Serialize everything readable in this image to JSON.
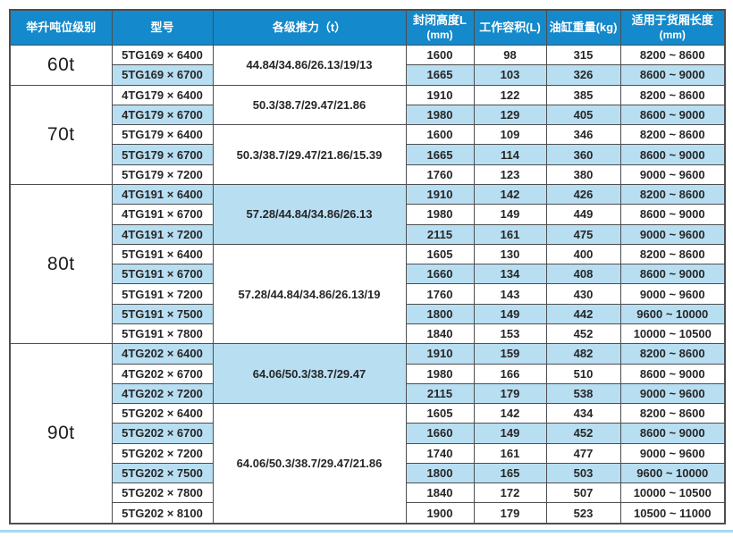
{
  "colors": {
    "header-bg": "#1489cb",
    "row-shade": "#b8def2",
    "border": "#4d4e50",
    "text": "#262626",
    "bottom-line": "#a6d9f3"
  },
  "table": {
    "headers": [
      {
        "label": "举升吨位级别",
        "sub": ""
      },
      {
        "label": "型号",
        "sub": ""
      },
      {
        "label": "各级推力（t）",
        "sub": ""
      },
      {
        "label": "封闭高度L",
        "sub": "(mm)"
      },
      {
        "label": "工作容积(L)",
        "sub": ""
      },
      {
        "label": "油缸重量(kg)",
        "sub": ""
      },
      {
        "label": "适用于货厢长度",
        "sub": "(mm)"
      }
    ],
    "groups": [
      {
        "tonnage": "60t",
        "subgroups": [
          {
            "thrust": "44.84/34.86/26.13/19/13",
            "thrust_shaded": false,
            "rows": [
              {
                "model": "5TG169 × 6400",
                "closed_height": "1600",
                "volume": "98",
                "weight": "315",
                "cargo_length": "8200 ~ 8600",
                "shaded": false
              },
              {
                "model": "5TG169 × 6700",
                "closed_height": "1665",
                "volume": "103",
                "weight": "326",
                "cargo_length": "8600 ~ 9000",
                "shaded": true
              }
            ]
          }
        ]
      },
      {
        "tonnage": "70t",
        "subgroups": [
          {
            "thrust": "50.3/38.7/29.47/21.86",
            "thrust_shaded": false,
            "rows": [
              {
                "model": "4TG179 × 6400",
                "closed_height": "1910",
                "volume": "122",
                "weight": "385",
                "cargo_length": "8200 ~ 8600",
                "shaded": false
              },
              {
                "model": "4TG179 × 6700",
                "closed_height": "1980",
                "volume": "129",
                "weight": "405",
                "cargo_length": "8600 ~ 9000",
                "shaded": true
              }
            ]
          },
          {
            "thrust": "50.3/38.7/29.47/21.86/15.39",
            "thrust_shaded": false,
            "rows": [
              {
                "model": "5TG179 × 6400",
                "closed_height": "1600",
                "volume": "109",
                "weight": "346",
                "cargo_length": "8200 ~ 8600",
                "shaded": false
              },
              {
                "model": "5TG179 × 6700",
                "closed_height": "1665",
                "volume": "114",
                "weight": "360",
                "cargo_length": "8600 ~ 9000",
                "shaded": true
              },
              {
                "model": "5TG179 × 7200",
                "closed_height": "1760",
                "volume": "123",
                "weight": "380",
                "cargo_length": "9000 ~ 9600",
                "shaded": false
              }
            ]
          }
        ]
      },
      {
        "tonnage": "80t",
        "subgroups": [
          {
            "thrust": "57.28/44.84/34.86/26.13",
            "thrust_shaded": true,
            "rows": [
              {
                "model": "4TG191 × 6400",
                "closed_height": "1910",
                "volume": "142",
                "weight": "426",
                "cargo_length": "8200 ~ 8600",
                "shaded": true
              },
              {
                "model": "4TG191 × 6700",
                "closed_height": "1980",
                "volume": "149",
                "weight": "449",
                "cargo_length": "8600 ~ 9000",
                "shaded": false
              },
              {
                "model": "4TG191 × 7200",
                "closed_height": "2115",
                "volume": "161",
                "weight": "475",
                "cargo_length": "9000 ~ 9600",
                "shaded": true
              }
            ]
          },
          {
            "thrust": "57.28/44.84/34.86/26.13/19",
            "thrust_shaded": false,
            "rows": [
              {
                "model": "5TG191 × 6400",
                "closed_height": "1605",
                "volume": "130",
                "weight": "400",
                "cargo_length": "8200 ~ 8600",
                "shaded": false
              },
              {
                "model": "5TG191 × 6700",
                "closed_height": "1660",
                "volume": "134",
                "weight": "408",
                "cargo_length": "8600 ~ 9000",
                "shaded": true
              },
              {
                "model": "5TG191 × 7200",
                "closed_height": "1760",
                "volume": "143",
                "weight": "430",
                "cargo_length": "9000 ~ 9600",
                "shaded": false
              },
              {
                "model": "5TG191 × 7500",
                "closed_height": "1800",
                "volume": "149",
                "weight": "442",
                "cargo_length": "9600 ~ 10000",
                "shaded": true
              },
              {
                "model": "5TG191 × 7800",
                "closed_height": "1840",
                "volume": "153",
                "weight": "452",
                "cargo_length": "10000 ~ 10500",
                "shaded": false
              }
            ]
          }
        ]
      },
      {
        "tonnage": "90t",
        "subgroups": [
          {
            "thrust": "64.06/50.3/38.7/29.47",
            "thrust_shaded": true,
            "rows": [
              {
                "model": "4TG202 × 6400",
                "closed_height": "1910",
                "volume": "159",
                "weight": "482",
                "cargo_length": "8200 ~ 8600",
                "shaded": true
              },
              {
                "model": "4TG202 × 6700",
                "closed_height": "1980",
                "volume": "166",
                "weight": "510",
                "cargo_length": "8600 ~ 9000",
                "shaded": false
              },
              {
                "model": "4TG202 × 7200",
                "closed_height": "2115",
                "volume": "179",
                "weight": "538",
                "cargo_length": "9000 ~ 9600",
                "shaded": true
              }
            ]
          },
          {
            "thrust": "64.06/50.3/38.7/29.47/21.86",
            "thrust_shaded": false,
            "rows": [
              {
                "model": "5TG202 × 6400",
                "closed_height": "1605",
                "volume": "142",
                "weight": "434",
                "cargo_length": "8200 ~ 8600",
                "shaded": false
              },
              {
                "model": "5TG202 × 6700",
                "closed_height": "1660",
                "volume": "149",
                "weight": "452",
                "cargo_length": "8600 ~ 9000",
                "shaded": true
              },
              {
                "model": "5TG202 × 7200",
                "closed_height": "1740",
                "volume": "161",
                "weight": "477",
                "cargo_length": "9000 ~ 9600",
                "shaded": false
              },
              {
                "model": "5TG202 × 7500",
                "closed_height": "1800",
                "volume": "165",
                "weight": "503",
                "cargo_length": "9600 ~ 10000",
                "shaded": true
              },
              {
                "model": "5TG202 × 7800",
                "closed_height": "1840",
                "volume": "172",
                "weight": "507",
                "cargo_length": "10000 ~ 10500",
                "shaded": false
              },
              {
                "model": "5TG202 × 8100",
                "closed_height": "1900",
                "volume": "179",
                "weight": "523",
                "cargo_length": "10500 ~ 11000",
                "shaded": false
              }
            ]
          }
        ]
      }
    ]
  }
}
